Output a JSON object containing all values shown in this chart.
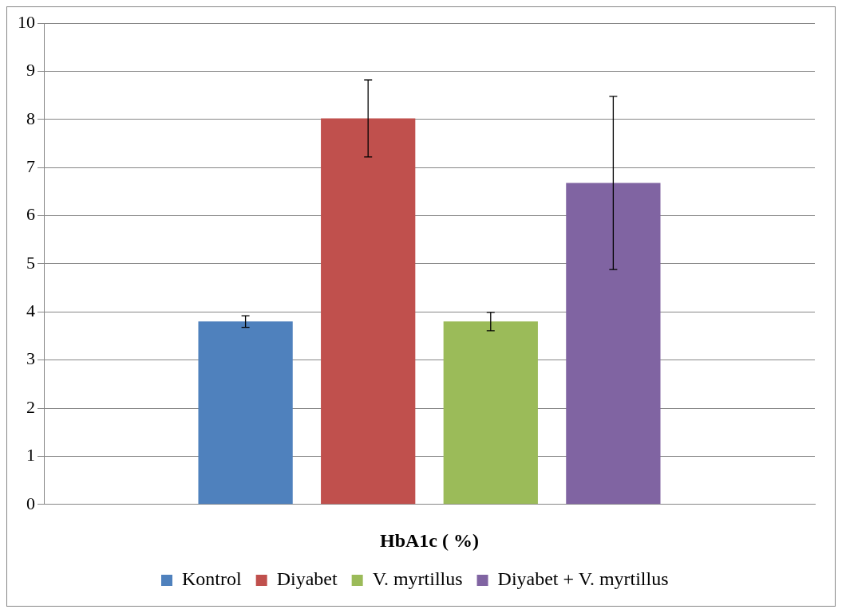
{
  "chart_data": {
    "type": "bar",
    "xlabel": "HbA1c ( %)",
    "categories": [
      null
    ],
    "series": [
      {
        "name": "Kontrol",
        "color": "#4f81bd",
        "values": [
          3.8
        ],
        "errors": [
          0.12
        ]
      },
      {
        "name": "Diyabet",
        "color": "#c0504d",
        "values": [
          8.02
        ],
        "errors": [
          0.8
        ]
      },
      {
        "name": "V. myrtillus",
        "color": "#9bbb59",
        "values": [
          3.8
        ],
        "errors": [
          0.19
        ]
      },
      {
        "name": "Diyabet + V. myrtillus",
        "color": "#8064a2",
        "values": [
          6.68
        ],
        "errors": [
          1.8
        ]
      }
    ],
    "ylim": [
      0,
      10
    ],
    "yticks": [
      0,
      1,
      2,
      3,
      4,
      5,
      6,
      7,
      8,
      9,
      10
    ],
    "grid": "y",
    "legend": "bottom"
  }
}
